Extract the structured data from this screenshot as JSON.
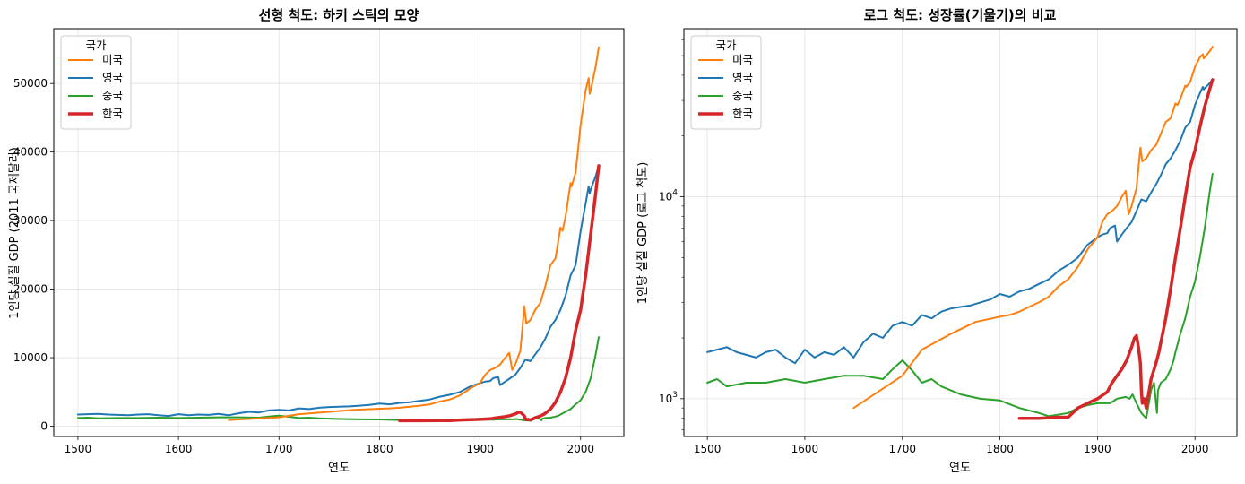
{
  "colors": {
    "usa": "#ff7f0e",
    "uk": "#1f77b4",
    "china": "#2ca02c",
    "korea": "#d62728"
  },
  "chart_data": [
    {
      "type": "line",
      "title": "선형 척도: 하키 스틱의 모양",
      "xlabel": "연도",
      "ylabel": "1인당 실질 GDP (2011 국제달러)",
      "yscale": "linear",
      "xlim": [
        1476,
        2043
      ],
      "ylim": [
        -1500,
        58000
      ],
      "xticks": [
        1500,
        1600,
        1700,
        1800,
        1900,
        2000
      ],
      "yticks": [
        0,
        10000,
        20000,
        30000,
        40000,
        50000
      ],
      "ytick_labels": [
        "0",
        "10000",
        "20000",
        "30000",
        "40000",
        "50000"
      ],
      "grid": true,
      "legend": {
        "title": "국가",
        "placement": "upper-left",
        "entries": [
          "미국",
          "영국",
          "중국",
          "한국"
        ]
      },
      "series_ref": "shared"
    },
    {
      "type": "line",
      "title": "로그 척도: 성장률(기울기)의 비교",
      "xlabel": "연도",
      "ylabel": "1인당 실질 GDP (로그 척도)",
      "yscale": "log",
      "xlim": [
        1476,
        2043
      ],
      "ylim": [
        650,
        68000
      ],
      "xticks": [
        1500,
        1600,
        1700,
        1800,
        1900,
        2000
      ],
      "yticks": [
        1000,
        10000
      ],
      "ytick_labels": [
        "10^3",
        "10^4"
      ],
      "grid": true,
      "legend": {
        "title": "국가",
        "placement": "upper-left",
        "entries": [
          "미국",
          "영국",
          "중국",
          "한국"
        ]
      },
      "series_ref": "shared"
    }
  ],
  "series": [
    {
      "key": "usa",
      "name": "미국",
      "x": [
        1650,
        1700,
        1720,
        1750,
        1775,
        1800,
        1810,
        1820,
        1830,
        1840,
        1850,
        1860,
        1870,
        1880,
        1890,
        1900,
        1905,
        1910,
        1915,
        1920,
        1925,
        1929,
        1932,
        1935,
        1940,
        1944,
        1946,
        1950,
        1955,
        1960,
        1965,
        1970,
        1975,
        1980,
        1982,
        1985,
        1990,
        1991,
        1995,
        2000,
        2005,
        2008,
        2009,
        2010,
        2015,
        2018
      ],
      "y": [
        900,
        1300,
        1750,
        2100,
        2400,
        2550,
        2600,
        2700,
        2850,
        3000,
        3200,
        3600,
        3900,
        4500,
        5500,
        6300,
        7500,
        8200,
        8500,
        9000,
        10000,
        10700,
        8200,
        9000,
        11000,
        17500,
        15000,
        15500,
        17000,
        18000,
        20500,
        23500,
        24500,
        29000,
        28500,
        30500,
        35500,
        35000,
        37000,
        44000,
        49000,
        50800,
        48500,
        49000,
        52500,
        55300
      ]
    },
    {
      "key": "uk",
      "name": "영국",
      "x": [
        1500,
        1510,
        1520,
        1530,
        1540,
        1550,
        1560,
        1570,
        1580,
        1590,
        1600,
        1610,
        1620,
        1630,
        1640,
        1650,
        1660,
        1670,
        1680,
        1690,
        1700,
        1710,
        1720,
        1730,
        1740,
        1750,
        1760,
        1770,
        1780,
        1790,
        1800,
        1810,
        1820,
        1830,
        1840,
        1850,
        1860,
        1870,
        1880,
        1890,
        1900,
        1905,
        1910,
        1913,
        1918,
        1920,
        1925,
        1930,
        1935,
        1940,
        1945,
        1950,
        1955,
        1960,
        1965,
        1970,
        1975,
        1980,
        1985,
        1990,
        1995,
        2000,
        2005,
        2008,
        2009,
        2010,
        2015,
        2018
      ],
      "y": [
        1700,
        1750,
        1800,
        1700,
        1650,
        1600,
        1700,
        1750,
        1600,
        1500,
        1750,
        1600,
        1700,
        1650,
        1800,
        1600,
        1900,
        2100,
        2000,
        2300,
        2400,
        2300,
        2600,
        2500,
        2700,
        2800,
        2850,
        2900,
        3000,
        3100,
        3300,
        3200,
        3400,
        3500,
        3700,
        3900,
        4300,
        4600,
        5000,
        5800,
        6300,
        6500,
        6600,
        7000,
        7200,
        6000,
        6500,
        7000,
        7500,
        8500,
        9700,
        9500,
        10500,
        11500,
        12800,
        14500,
        15500,
        17000,
        19000,
        22000,
        23500,
        28500,
        32500,
        35000,
        34000,
        34500,
        36500,
        38000
      ]
    },
    {
      "key": "china",
      "name": "중국",
      "x": [
        1500,
        1510,
        1520,
        1540,
        1560,
        1580,
        1600,
        1620,
        1640,
        1660,
        1680,
        1690,
        1700,
        1710,
        1720,
        1730,
        1740,
        1760,
        1780,
        1800,
        1820,
        1840,
        1850,
        1870,
        1880,
        1890,
        1900,
        1913,
        1920,
        1929,
        1933,
        1936,
        1940,
        1945,
        1950,
        1955,
        1958,
        1961,
        1962,
        1965,
        1970,
        1975,
        1978,
        1980,
        1985,
        1990,
        1995,
        2000,
        2005,
        2010,
        2015,
        2018
      ],
      "y": [
        1200,
        1250,
        1150,
        1200,
        1200,
        1250,
        1200,
        1250,
        1300,
        1300,
        1250,
        1400,
        1550,
        1380,
        1200,
        1250,
        1150,
        1050,
        1000,
        980,
        900,
        850,
        820,
        850,
        900,
        930,
        950,
        950,
        1000,
        1020,
        1000,
        1050,
        950,
        850,
        800,
        1100,
        1200,
        850,
        1100,
        1200,
        1250,
        1400,
        1550,
        1700,
        2100,
        2500,
        3200,
        3800,
        5000,
        7000,
        10500,
        13000
      ]
    },
    {
      "key": "korea",
      "name": "한국",
      "x": [
        1820,
        1840,
        1860,
        1870,
        1880,
        1890,
        1900,
        1910,
        1915,
        1920,
        1925,
        1930,
        1935,
        1938,
        1940,
        1942,
        1944,
        1945,
        1946,
        1948,
        1950,
        1953,
        1955,
        1960,
        1963,
        1965,
        1970,
        1975,
        1980,
        1985,
        1990,
        1995,
        2000,
        2005,
        2010,
        2015,
        2018
      ],
      "y": [
        800,
        800,
        810,
        810,
        900,
        950,
        1000,
        1080,
        1200,
        1300,
        1400,
        1550,
        1800,
        2000,
        2050,
        1800,
        1500,
        1100,
        950,
        1000,
        900,
        1100,
        1250,
        1500,
        1700,
        1900,
        2500,
        3500,
        5000,
        7000,
        10000,
        14000,
        17000,
        22000,
        28000,
        34000,
        38000
      ]
    }
  ]
}
